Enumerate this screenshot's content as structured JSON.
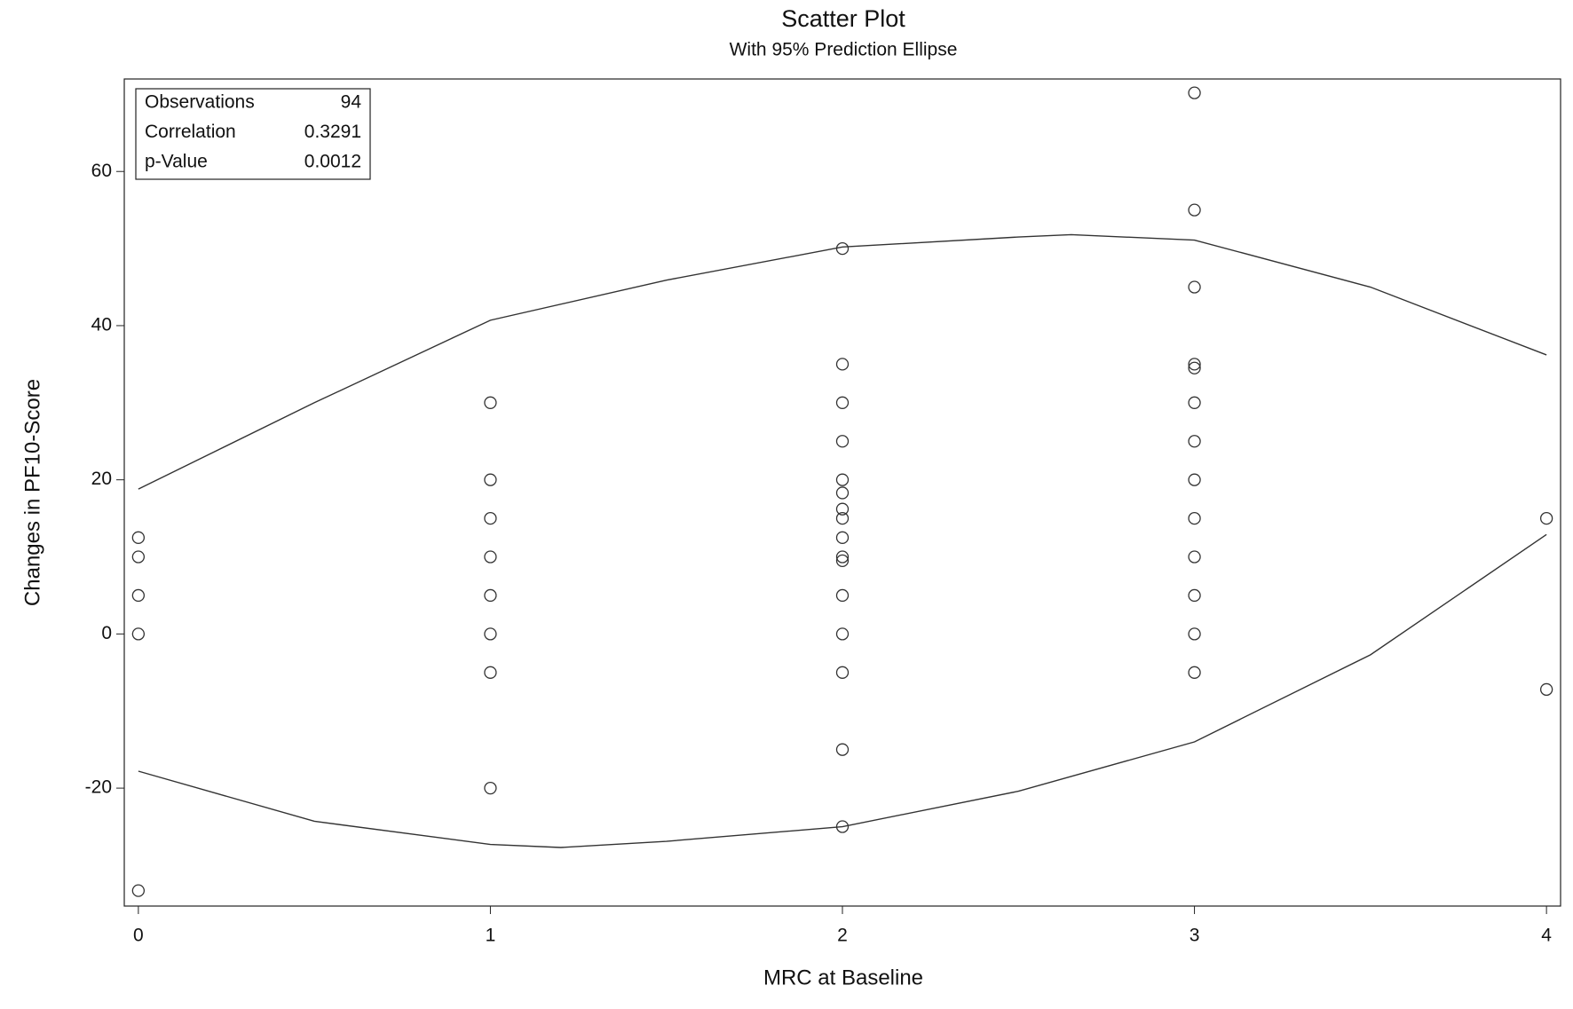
{
  "chart_data": {
    "type": "scatter",
    "title": "Scatter Plot",
    "subtitle": "With 95% Prediction Ellipse",
    "x_label": "MRC at Baseline",
    "y_label": "Changes in PF10-Score",
    "x": [
      0,
      0,
      0,
      0,
      0,
      1,
      1,
      1,
      1,
      1,
      1,
      1,
      1,
      2,
      2,
      2,
      2,
      2,
      2,
      2,
      2,
      2,
      2,
      2,
      2,
      2,
      2,
      2,
      2,
      3,
      3,
      3,
      3,
      3,
      3,
      3,
      3,
      3,
      3,
      3,
      3,
      3,
      4,
      4
    ],
    "values": [
      12.5,
      10,
      5,
      0,
      -33.3,
      30,
      20,
      15,
      10,
      5,
      0,
      -5,
      -20,
      50,
      35,
      30,
      25,
      20,
      18.3,
      16.2,
      15,
      12.5,
      10,
      9.5,
      5,
      0,
      -5,
      -15,
      -25,
      70.2,
      55,
      45,
      35,
      34.5,
      30,
      25,
      20,
      15,
      10,
      5,
      0,
      -5,
      15,
      -7.2
    ],
    "xlim": [
      -0.04,
      4.04
    ],
    "ylim": [
      -35.3,
      72
    ],
    "xticks": [
      0,
      1,
      2,
      3,
      4
    ],
    "yticks": [
      -20,
      0,
      20,
      40,
      60
    ],
    "color": "#333333",
    "ellipse": {
      "type": "line",
      "color": "#333333",
      "x": [
        0,
        0.5,
        1,
        1.5,
        2,
        2.5,
        2.65,
        3,
        3.5,
        4,
        null,
        4,
        3.5,
        3,
        2.5,
        2,
        1.5,
        1.2,
        1,
        0.5,
        0
      ],
      "values": [
        18.8,
        30,
        40.7,
        45.9,
        50.2,
        51.5,
        51.8,
        51.1,
        45,
        36.2,
        null,
        12.9,
        -2.7,
        -14,
        -20.4,
        -25,
        -26.9,
        -27.7,
        -27.3,
        -24.3,
        -17.8
      ]
    },
    "stats": [
      {
        "label": "Observations",
        "value": 94
      },
      {
        "label": "Correlation",
        "value": 0.3291
      },
      {
        "label": "p-Value",
        "value": 0.0012
      }
    ]
  }
}
